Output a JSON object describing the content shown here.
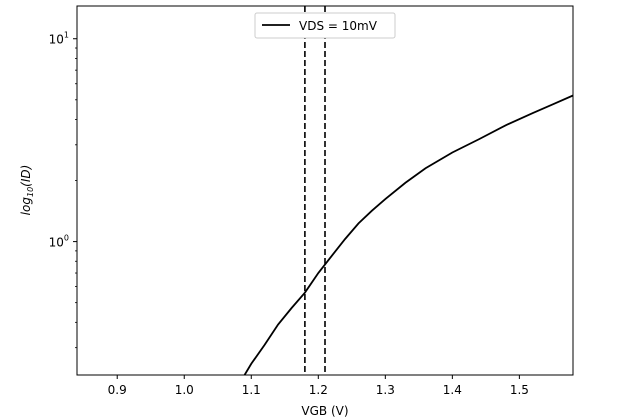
{
  "chart_data": {
    "type": "line",
    "title": "",
    "xlabel": "VGB (V)",
    "ylabel_base": "log",
    "ylabel_sub": "10",
    "ylabel_arg": "(ID)",
    "x_scale": "linear",
    "y_scale": "log",
    "xlim": [
      0.84,
      1.58
    ],
    "ylim": [
      0.22,
      14.5
    ],
    "x_ticks": [
      0.9,
      1.0,
      1.1,
      1.2,
      1.3,
      1.4,
      1.5
    ],
    "x_tick_labels": [
      "0.9",
      "1.0",
      "1.1",
      "1.2",
      "1.3",
      "1.4",
      "1.5"
    ],
    "y_ticks": [
      1,
      10
    ],
    "y_tick_labels": [
      {
        "base": "10",
        "exp": "0"
      },
      {
        "base": "10",
        "exp": "1"
      }
    ],
    "grid": false,
    "legend_position": "top-center",
    "series": [
      {
        "name": "VDS = 10mV",
        "color": "#000000",
        "style": "solid",
        "x": [
          1.09,
          1.1,
          1.12,
          1.14,
          1.16,
          1.18,
          1.2,
          1.22,
          1.24,
          1.26,
          1.28,
          1.3,
          1.33,
          1.36,
          1.4,
          1.44,
          1.48,
          1.52,
          1.55,
          1.58
        ],
        "y": [
          0.22,
          0.25,
          0.31,
          0.39,
          0.47,
          0.56,
          0.7,
          0.85,
          1.03,
          1.23,
          1.42,
          1.62,
          1.95,
          2.3,
          2.75,
          3.2,
          3.75,
          4.3,
          4.75,
          5.25
        ]
      }
    ],
    "vlines": [
      {
        "x": 1.18,
        "color": "#000000",
        "style": "dashed"
      },
      {
        "x": 1.21,
        "color": "#000000",
        "style": "dashed"
      }
    ]
  }
}
